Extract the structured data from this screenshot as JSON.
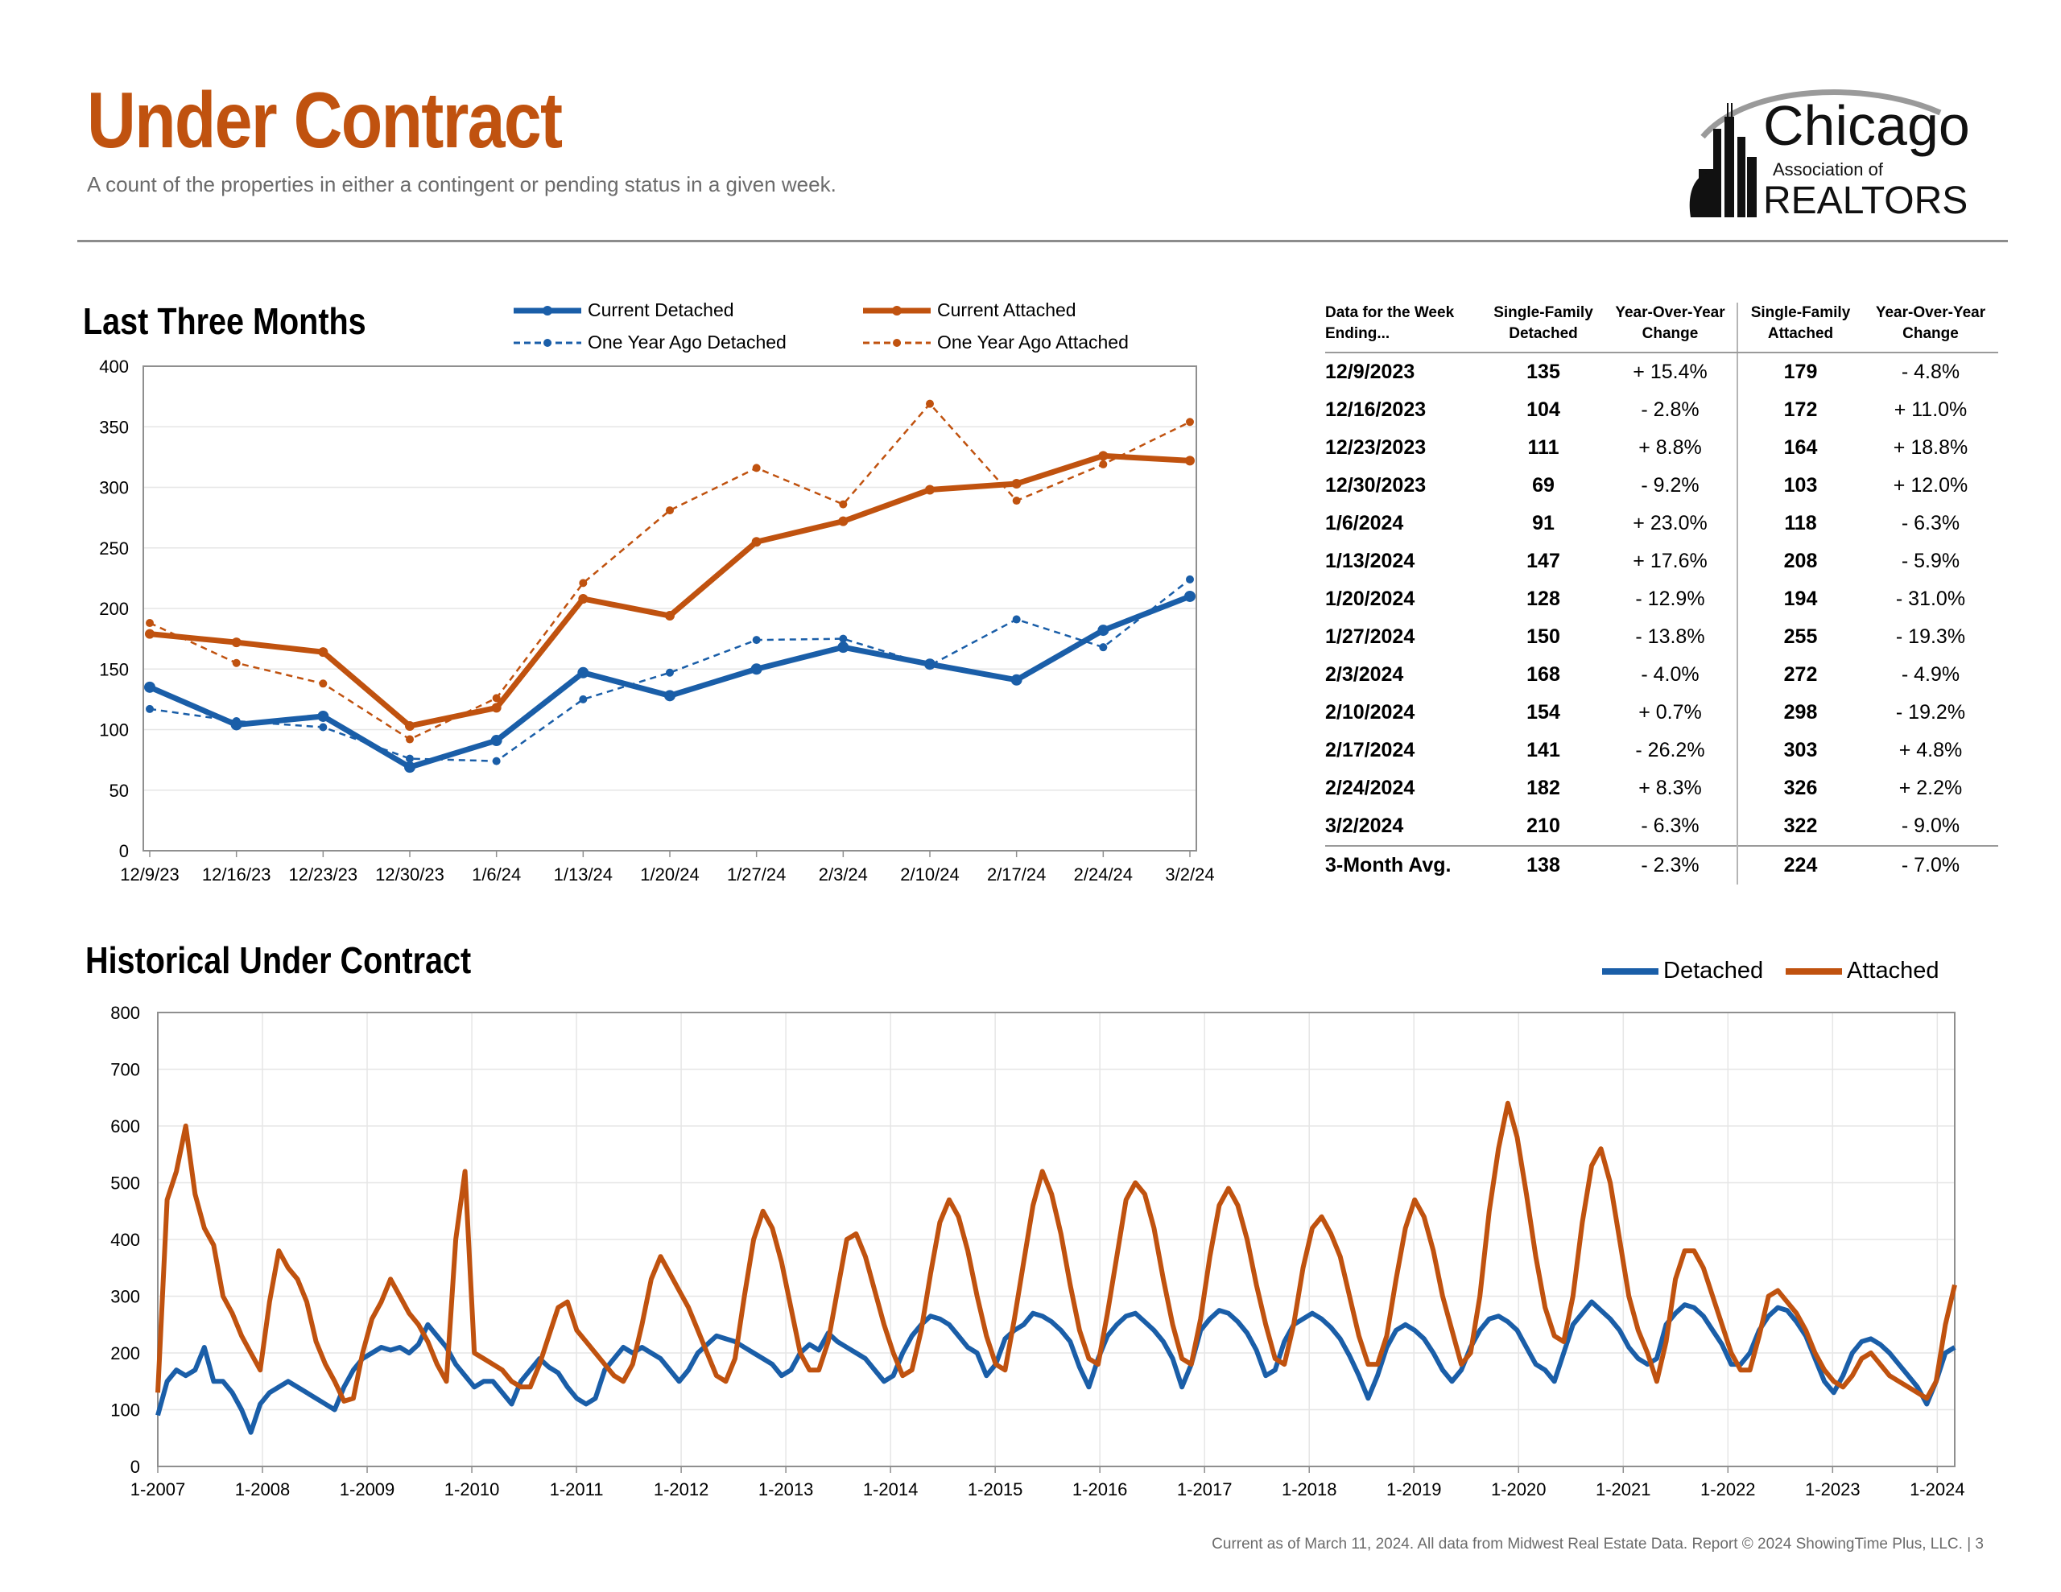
{
  "header": {
    "title": "Under Contract",
    "subtitle": "A count of the properties in either a contingent or pending status in a given week."
  },
  "logo": {
    "line1": "Chicago",
    "line2": "Association of",
    "line3": "REALTORS"
  },
  "colors": {
    "detached": "#1a5ea8",
    "attached": "#c0520f",
    "title": "#c0520f"
  },
  "recent_chart": {
    "section_title": "Last Three Months",
    "legend": {
      "current_detached": "Current Detached",
      "current_attached": "Current Attached",
      "ago_detached": "One Year Ago Detached",
      "ago_attached": "One Year Ago Attached"
    }
  },
  "historical_chart": {
    "section_title": "Historical Under Contract",
    "legend": {
      "detached": "Detached",
      "attached": "Attached"
    }
  },
  "chart_data": [
    {
      "type": "line",
      "title": "Last Three Months",
      "categories": [
        "12/9/23",
        "12/16/23",
        "12/23/23",
        "12/30/23",
        "1/6/24",
        "1/13/24",
        "1/20/24",
        "1/27/24",
        "2/3/24",
        "2/10/24",
        "2/17/24",
        "2/24/24",
        "3/2/24"
      ],
      "ylim": [
        0,
        400
      ],
      "yticks": [
        0,
        50,
        100,
        150,
        200,
        250,
        300,
        350,
        400
      ],
      "grid": true,
      "legend_position": "top",
      "series": [
        {
          "name": "Current Detached",
          "values": [
            135,
            104,
            111,
            69,
            91,
            147,
            128,
            150,
            168,
            154,
            141,
            182,
            210
          ]
        },
        {
          "name": "Current Attached",
          "values": [
            179,
            172,
            164,
            103,
            118,
            208,
            194,
            255,
            272,
            298,
            303,
            326,
            322
          ]
        },
        {
          "name": "One Year Ago Detached",
          "values": [
            117,
            107,
            102,
            76,
            74,
            125,
            147,
            174,
            175,
            153,
            191,
            168,
            224
          ]
        },
        {
          "name": "One Year Ago Attached",
          "values": [
            188,
            155,
            138,
            92,
            126,
            221,
            281,
            316,
            286,
            369,
            289,
            319,
            354
          ]
        }
      ]
    },
    {
      "type": "line",
      "title": "Historical Under Contract",
      "x_range": [
        "1-2007",
        "3-2024"
      ],
      "xticks": [
        "1-2007",
        "1-2008",
        "1-2009",
        "1-2010",
        "1-2011",
        "1-2012",
        "1-2013",
        "1-2014",
        "1-2015",
        "1-2016",
        "1-2017",
        "1-2018",
        "1-2019",
        "1-2020",
        "1-2021",
        "1-2022",
        "1-2023",
        "1-2024"
      ],
      "ylim": [
        0,
        800
      ],
      "yticks": [
        0,
        100,
        200,
        300,
        400,
        500,
        600,
        700,
        800
      ],
      "grid": true,
      "legend_position": "top-right",
      "series": [
        {
          "name": "Detached",
          "values": [
            90,
            150,
            170,
            160,
            170,
            210,
            150,
            150,
            130,
            100,
            60,
            110,
            130,
            140,
            150,
            140,
            130,
            120,
            110,
            100,
            140,
            170,
            190,
            200,
            210,
            205,
            210,
            200,
            215,
            250,
            230,
            210,
            180,
            160,
            140,
            150,
            150,
            130,
            110,
            150,
            170,
            190,
            175,
            165,
            140,
            120,
            110,
            120,
            170,
            190,
            210,
            200,
            210,
            200,
            190,
            170,
            150,
            170,
            200,
            215,
            230,
            225,
            220,
            210,
            200,
            190,
            180,
            160,
            170,
            200,
            215,
            205,
            235,
            220,
            210,
            200,
            190,
            170,
            150,
            160,
            200,
            230,
            250,
            265,
            260,
            250,
            230,
            210,
            200,
            160,
            180,
            225,
            240,
            250,
            270,
            265,
            255,
            240,
            220,
            175,
            140,
            190,
            230,
            250,
            265,
            270,
            255,
            240,
            220,
            190,
            140,
            180,
            240,
            260,
            275,
            270,
            255,
            235,
            205,
            160,
            170,
            220,
            250,
            260,
            270,
            260,
            245,
            225,
            195,
            160,
            120,
            160,
            210,
            240,
            250,
            240,
            225,
            200,
            170,
            150,
            170,
            210,
            240,
            260,
            265,
            255,
            240,
            210,
            180,
            170,
            150,
            200,
            250,
            270,
            290,
            275,
            260,
            240,
            210,
            190,
            180,
            190,
            250,
            270,
            285,
            280,
            265,
            240,
            215,
            180,
            180,
            200,
            240,
            265,
            280,
            275,
            255,
            230,
            190,
            150,
            130,
            160,
            200,
            220,
            225,
            215,
            200,
            180,
            160,
            140,
            110,
            150,
            200,
            210
          ]
        },
        {
          "name": "Attached",
          "values": [
            130,
            470,
            520,
            600,
            480,
            420,
            390,
            300,
            270,
            230,
            200,
            170,
            290,
            380,
            350,
            330,
            290,
            220,
            180,
            150,
            115,
            120,
            200,
            260,
            290,
            330,
            300,
            270,
            250,
            220,
            180,
            150,
            400,
            520,
            200,
            190,
            180,
            170,
            150,
            140,
            140,
            180,
            230,
            280,
            290,
            240,
            220,
            200,
            180,
            160,
            150,
            180,
            250,
            330,
            370,
            340,
            310,
            280,
            240,
            200,
            160,
            150,
            190,
            300,
            400,
            450,
            420,
            360,
            280,
            200,
            170,
            170,
            220,
            310,
            400,
            410,
            370,
            310,
            250,
            200,
            160,
            170,
            240,
            340,
            430,
            470,
            440,
            380,
            300,
            230,
            180,
            170,
            260,
            360,
            460,
            520,
            480,
            410,
            320,
            240,
            190,
            180,
            270,
            370,
            470,
            500,
            480,
            420,
            330,
            250,
            190,
            180,
            260,
            370,
            460,
            490,
            460,
            400,
            320,
            250,
            190,
            180,
            250,
            350,
            420,
            440,
            410,
            370,
            300,
            230,
            180,
            180,
            230,
            330,
            420,
            470,
            440,
            380,
            300,
            240,
            180,
            200,
            300,
            450,
            560,
            640,
            580,
            480,
            370,
            280,
            230,
            220,
            300,
            430,
            530,
            560,
            500,
            400,
            300,
            240,
            200,
            150,
            220,
            330,
            380,
            380,
            350,
            300,
            250,
            200,
            170,
            170,
            230,
            300,
            310,
            290,
            270,
            240,
            200,
            170,
            150,
            140,
            160,
            190,
            200,
            180,
            160,
            150,
            140,
            130,
            120,
            150,
            250,
            320
          ]
        }
      ]
    }
  ],
  "table": {
    "headers": [
      "Data for the Week Ending...",
      "Single-Family Detached",
      "Year-Over-Year Change",
      "Single-Family Attached",
      "Year-Over-Year Change"
    ],
    "rows": [
      [
        "12/9/2023",
        "135",
        "+ 15.4%",
        "179",
        "- 4.8%"
      ],
      [
        "12/16/2023",
        "104",
        "- 2.8%",
        "172",
        "+ 11.0%"
      ],
      [
        "12/23/2023",
        "111",
        "+ 8.8%",
        "164",
        "+ 18.8%"
      ],
      [
        "12/30/2023",
        "69",
        "- 9.2%",
        "103",
        "+ 12.0%"
      ],
      [
        "1/6/2024",
        "91",
        "+ 23.0%",
        "118",
        "- 6.3%"
      ],
      [
        "1/13/2024",
        "147",
        "+ 17.6%",
        "208",
        "- 5.9%"
      ],
      [
        "1/20/2024",
        "128",
        "- 12.9%",
        "194",
        "- 31.0%"
      ],
      [
        "1/27/2024",
        "150",
        "- 13.8%",
        "255",
        "- 19.3%"
      ],
      [
        "2/3/2024",
        "168",
        "- 4.0%",
        "272",
        "- 4.9%"
      ],
      [
        "2/10/2024",
        "154",
        "+ 0.7%",
        "298",
        "- 19.2%"
      ],
      [
        "2/17/2024",
        "141",
        "- 26.2%",
        "303",
        "+ 4.8%"
      ],
      [
        "2/24/2024",
        "182",
        "+ 8.3%",
        "326",
        "+ 2.2%"
      ],
      [
        "3/2/2024",
        "210",
        "- 6.3%",
        "322",
        "- 9.0%"
      ]
    ],
    "average": [
      "3-Month Avg.",
      "138",
      "- 2.3%",
      "224",
      "- 7.0%"
    ]
  },
  "footer": "Current as of March 11, 2024.  All data from Midwest Real Estate Data. Report © 2024 ShowingTime Plus, LLC.  |  3"
}
